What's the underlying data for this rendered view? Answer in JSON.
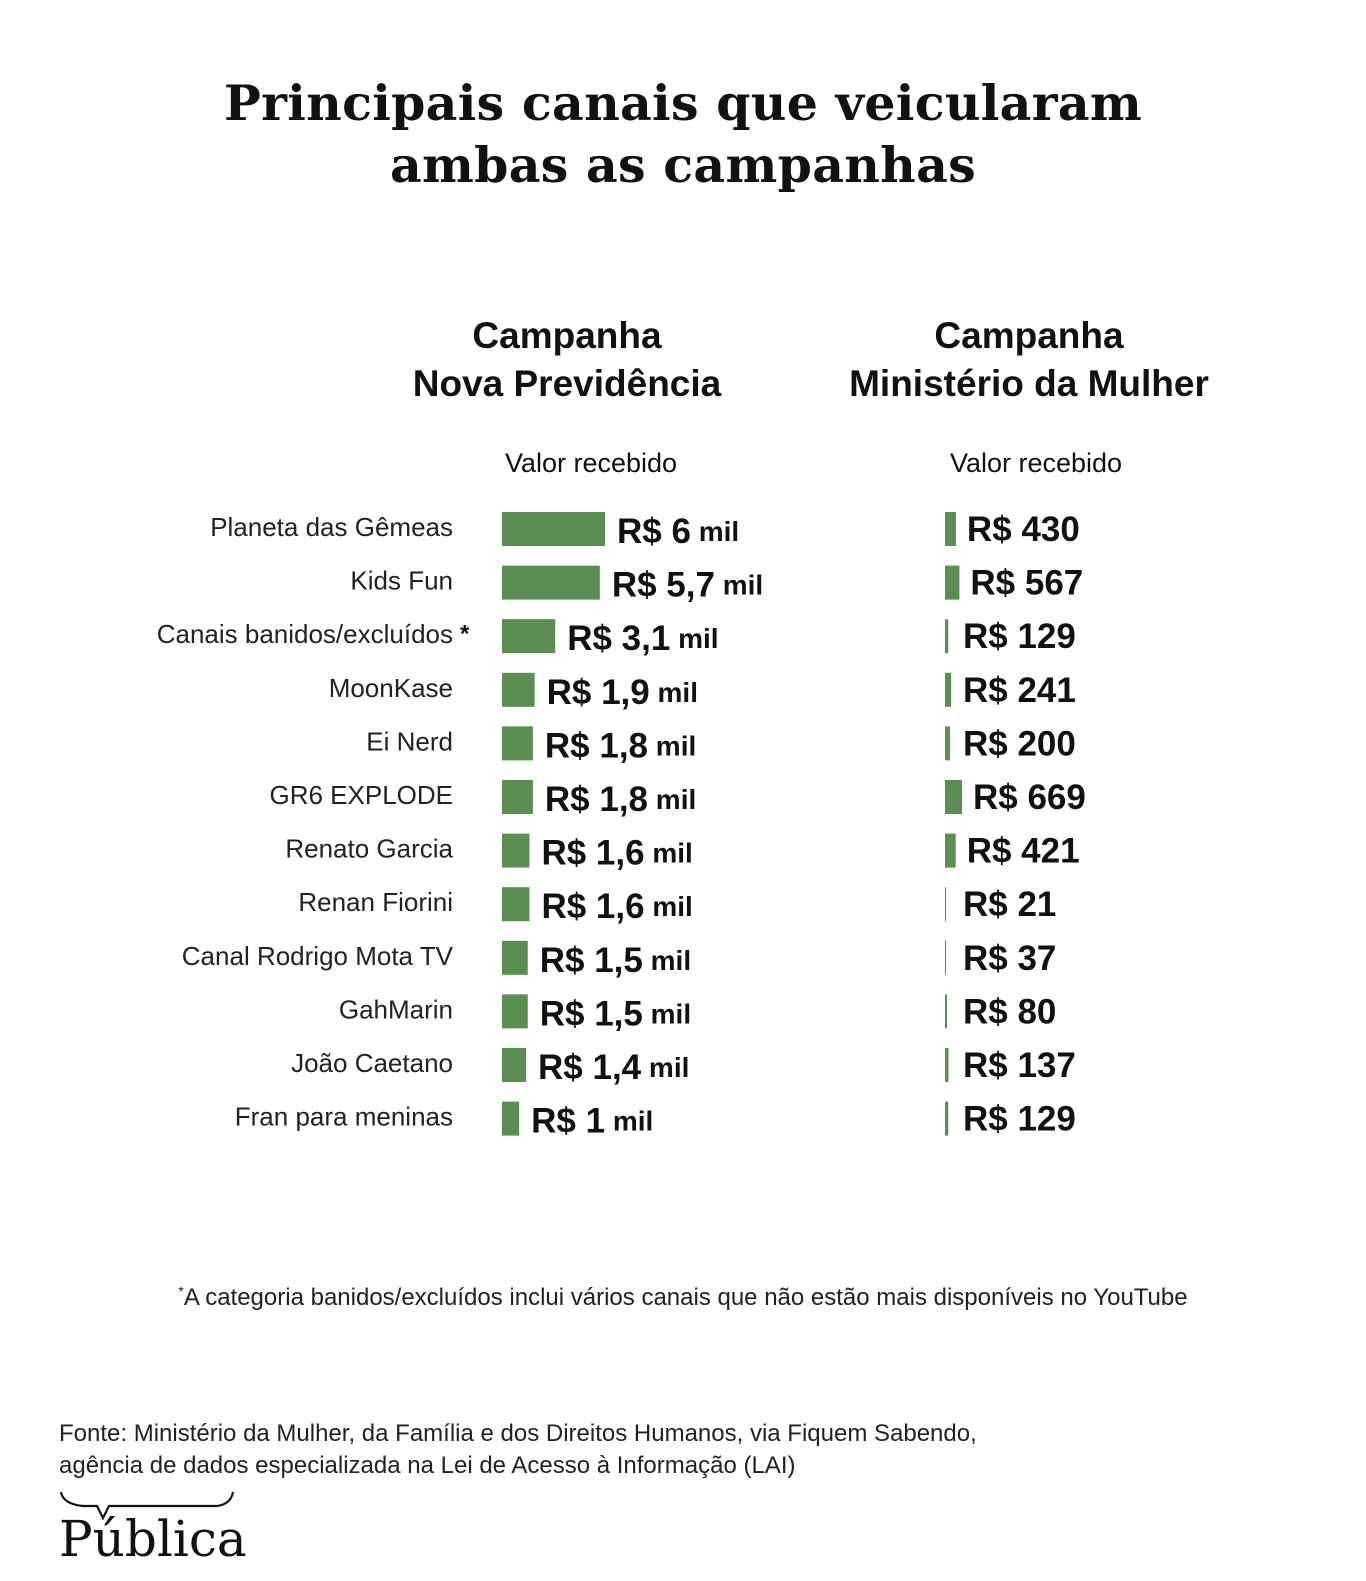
{
  "title": [
    "Principais canais que veicularam",
    "ambas as campanhas"
  ],
  "columns": {
    "left": {
      "heading": [
        "Campanha",
        "Nova Previdência"
      ],
      "subheading": "Valor recebido"
    },
    "right": {
      "heading": [
        "Campanha",
        "Ministério da Mulher"
      ],
      "subheading": "Valor recebido"
    }
  },
  "chart_data": {
    "type": "bar",
    "orientation": "horizontal",
    "categories": [
      "Planeta das Gêmeas",
      "Kids Fun",
      "Canais banidos/excluídos",
      "MoonKase",
      "Ei Nerd",
      "GR6 EXPLODE",
      "Renato Garcia",
      "Renan Fiorini",
      "Canal Rodrigo Mota TV",
      "GahMarin",
      "João Caetano",
      "Fran para meninas"
    ],
    "category_marks": [
      "",
      "",
      "*",
      "",
      "",
      "",
      "",
      "",
      "",
      "",
      "",
      ""
    ],
    "bar_color": "#5b8f51",
    "series": [
      {
        "name": "Campanha Nova Previdência",
        "values": [
          6000,
          5700,
          3100,
          1900,
          1800,
          1800,
          1600,
          1600,
          1500,
          1500,
          1400,
          1000
        ],
        "labels": [
          {
            "main": "R$ 6",
            "unit": "mil"
          },
          {
            "main": "R$ 5,7",
            "unit": "mil"
          },
          {
            "main": "R$ 3,1",
            "unit": "mil"
          },
          {
            "main": "R$ 1,9",
            "unit": "mil"
          },
          {
            "main": "R$ 1,8",
            "unit": "mil"
          },
          {
            "main": "R$ 1,8",
            "unit": "mil"
          },
          {
            "main": "R$ 1,6",
            "unit": "mil"
          },
          {
            "main": "R$ 1,6",
            "unit": "mil"
          },
          {
            "main": "R$ 1,5",
            "unit": "mil"
          },
          {
            "main": "R$ 1,5",
            "unit": "mil"
          },
          {
            "main": "R$ 1,4",
            "unit": "mil"
          },
          {
            "main": "R$ 1",
            "unit": "mil"
          }
        ]
      },
      {
        "name": "Campanha Ministério da Mulher",
        "values": [
          430,
          567,
          129,
          241,
          200,
          669,
          421,
          21,
          37,
          80,
          137,
          129
        ],
        "labels": [
          {
            "main": "R$ 430",
            "unit": ""
          },
          {
            "main": "R$ 567",
            "unit": ""
          },
          {
            "main": "R$ 129",
            "unit": ""
          },
          {
            "main": "R$ 241",
            "unit": ""
          },
          {
            "main": "R$ 200",
            "unit": ""
          },
          {
            "main": "R$ 669",
            "unit": ""
          },
          {
            "main": "R$ 421",
            "unit": ""
          },
          {
            "main": "R$ 21",
            "unit": ""
          },
          {
            "main": "R$ 37",
            "unit": ""
          },
          {
            "main": "R$ 80",
            "unit": ""
          },
          {
            "main": "R$ 137",
            "unit": ""
          },
          {
            "main": "R$ 129",
            "unit": ""
          }
        ]
      }
    ]
  },
  "footnote": {
    "mark": "*",
    "text": "A categoria banidos/excluídos inclui vários canais que não estão mais disponíveis no YouTube"
  },
  "source": [
    "Fonte: Ministério da Mulher, da Família e dos Direitos Humanos, via Fiquem Sabendo,",
    "agência de dados especializada na Lei de Acesso à Informação (LAI)"
  ],
  "logo": {
    "text": "Pública",
    "icon": "speech-brace-icon"
  }
}
